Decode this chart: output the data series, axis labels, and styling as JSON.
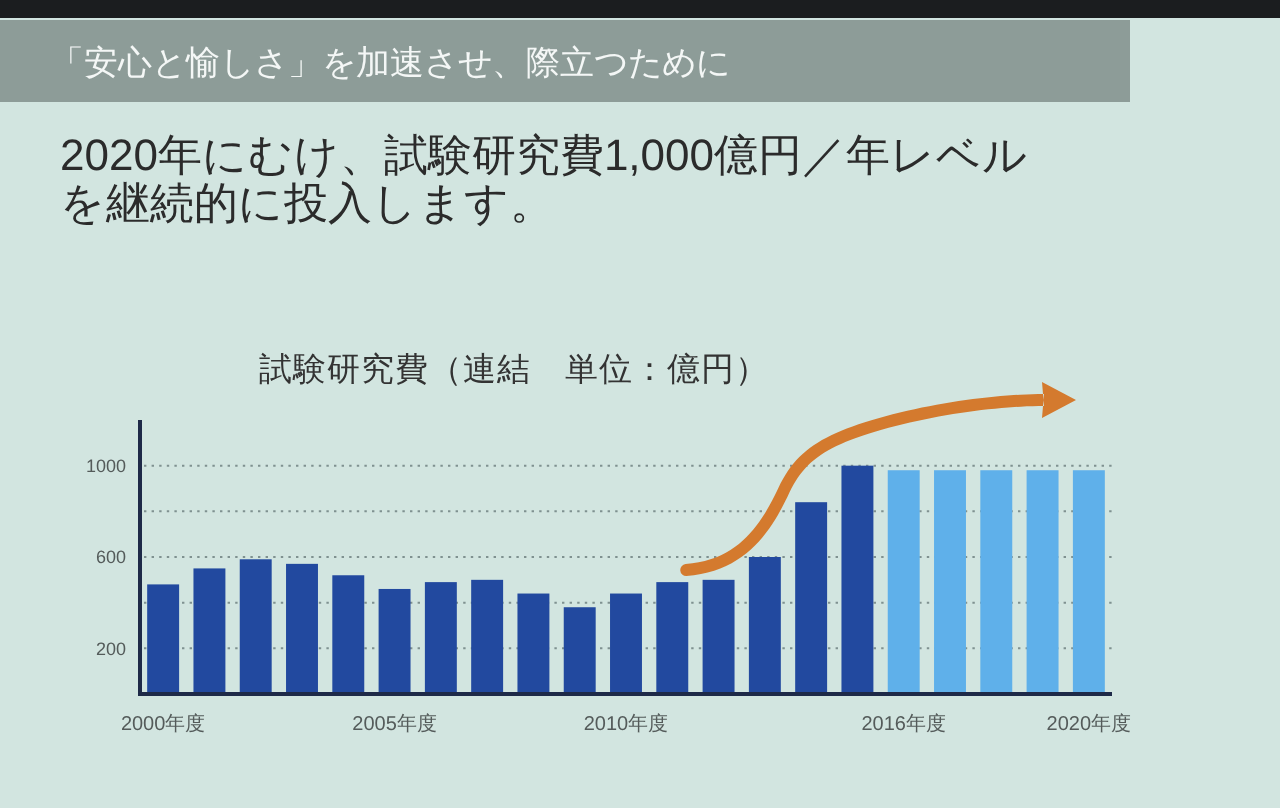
{
  "chart_data": {
    "type": "bar",
    "title": "試験研究費（連結　単位：億円）",
    "annotations": [
      "「安心と愉しさ」を加速させ、際立つために",
      "2020年にむけ、試験研究費1,000億円／年レベルを継続的に投入します。"
    ],
    "categories": [
      "2000年度",
      null,
      null,
      null,
      null,
      "2005年度",
      null,
      null,
      null,
      null,
      "2010年度",
      null,
      null,
      null,
      null,
      null,
      "2016年度",
      null,
      null,
      null,
      "2020年度"
    ],
    "values": [
      480,
      550,
      590,
      570,
      520,
      460,
      490,
      500,
      440,
      380,
      440,
      490,
      500,
      600,
      840,
      1000,
      980,
      980,
      980,
      980,
      980
    ],
    "colors": [
      "#22499f",
      "#22499f",
      "#22499f",
      "#22499f",
      "#22499f",
      "#22499f",
      "#22499f",
      "#22499f",
      "#22499f",
      "#22499f",
      "#22499f",
      "#22499f",
      "#22499f",
      "#22499f",
      "#22499f",
      "#22499f",
      "#5fb0ea",
      "#5fb0ea",
      "#5fb0ea",
      "#5fb0ea",
      "#5fb0ea"
    ],
    "ylim": [
      0,
      1200
    ],
    "yticks": [
      200,
      {
        "value": 400,
        "label": null
      },
      600,
      {
        "value": 800,
        "label": null
      },
      1000
    ],
    "grid": "y"
  }
}
